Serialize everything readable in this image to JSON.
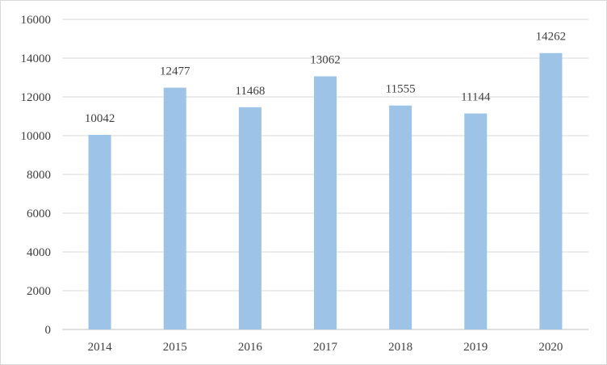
{
  "chart_data": {
    "type": "bar",
    "title": "",
    "xlabel": "",
    "ylabel": "",
    "categories": [
      "2014",
      "2015",
      "2016",
      "2017",
      "2018",
      "2019",
      "2020"
    ],
    "values": [
      10042,
      12477,
      11468,
      13062,
      11555,
      11144,
      14262
    ],
    "ylim": [
      0,
      16000
    ],
    "yticks": [
      0,
      2000,
      4000,
      6000,
      8000,
      10000,
      12000,
      14000,
      16000
    ],
    "grid": true,
    "legend": "none",
    "data_labels": true,
    "colors": {
      "bar": "#9DC3E6",
      "grid": "#D9D9D9",
      "axis": "#BFBFBF",
      "border": "#D9D9D9"
    }
  }
}
